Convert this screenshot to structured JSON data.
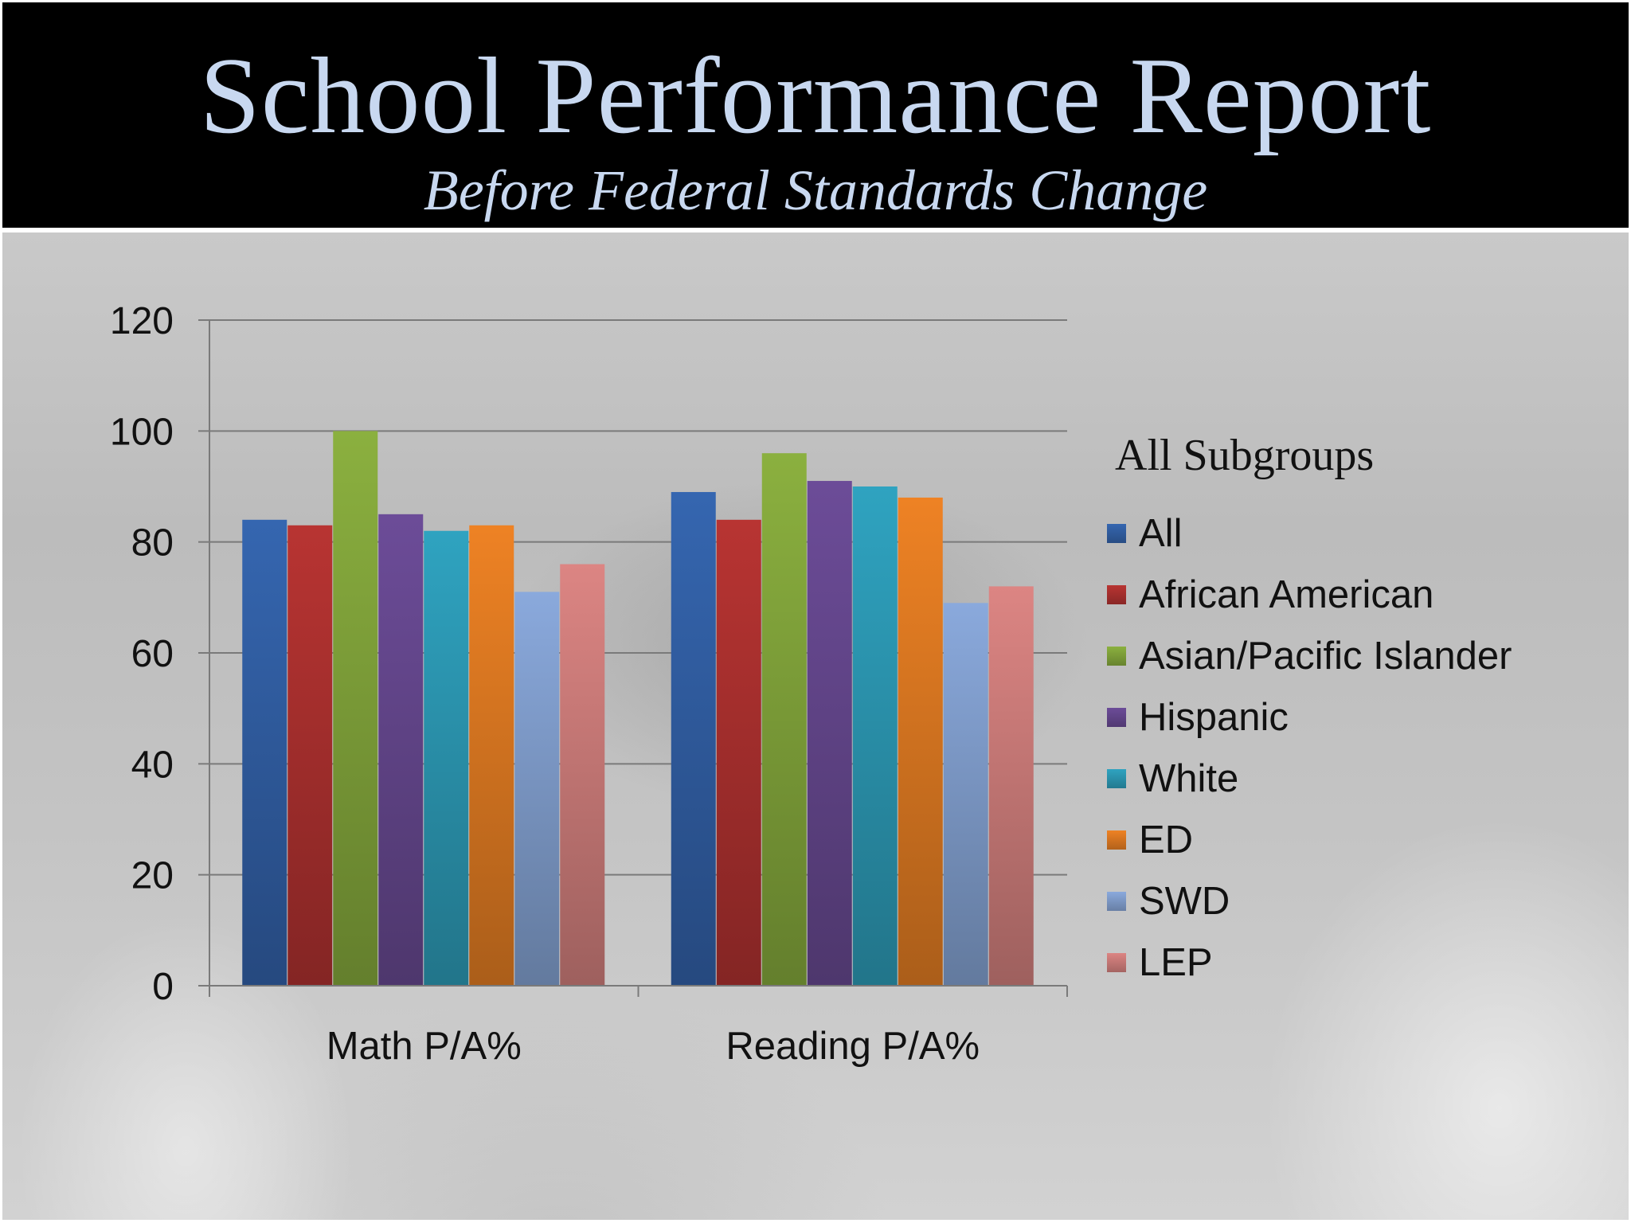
{
  "slide": {
    "title": "School Performance Report",
    "subtitle": "Before Federal Standards Change"
  },
  "chart_data": {
    "type": "bar",
    "categories": [
      "Math P/A%",
      "Reading P/A%"
    ],
    "ylim": [
      0,
      120
    ],
    "yticks": [
      0,
      20,
      40,
      60,
      80,
      100,
      120
    ],
    "grid": true,
    "legend_title": "All Subgroups",
    "legend_position": "right",
    "series": [
      {
        "name": "All",
        "color": "#3566b0",
        "values": [
          84,
          89
        ]
      },
      {
        "name": "African American",
        "color": "#b83432",
        "values": [
          83,
          84
        ]
      },
      {
        "name": "Asian/Pacific Islander",
        "color": "#8bb03f",
        "values": [
          100,
          96
        ]
      },
      {
        "name": "Hispanic",
        "color": "#6c4c98",
        "values": [
          85,
          91
        ]
      },
      {
        "name": "White",
        "color": "#2fa3c0",
        "values": [
          82,
          90
        ]
      },
      {
        "name": "ED",
        "color": "#ee8224",
        "values": [
          83,
          88
        ]
      },
      {
        "name": "SWD",
        "color": "#8aa9dc",
        "values": [
          71,
          69
        ]
      },
      {
        "name": "LEP",
        "color": "#dc8583",
        "values": [
          76,
          72
        ]
      }
    ]
  }
}
